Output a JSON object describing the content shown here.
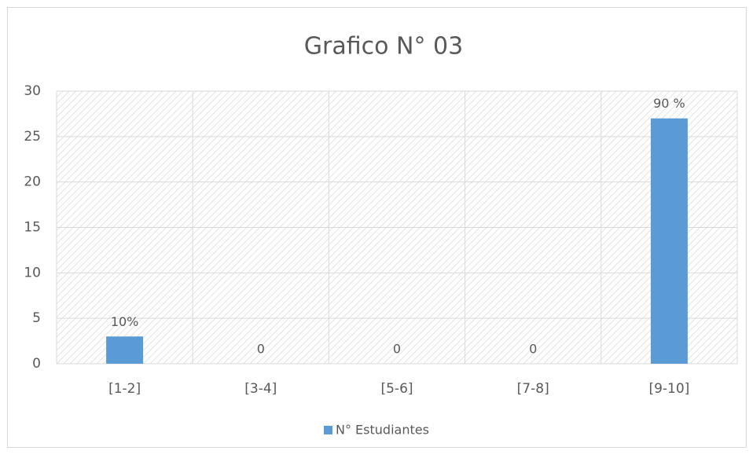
{
  "chart_data": {
    "type": "bar",
    "title": "Grafico N° 03",
    "categories": [
      "[1-2]",
      "[3-4]",
      "[5-6]",
      "[7-8]",
      "[9-10]"
    ],
    "series": [
      {
        "name": "N° Estudiantes",
        "color": "#5b9bd5",
        "values": [
          3,
          0,
          0,
          0,
          27
        ]
      }
    ],
    "annotations": [
      "10%",
      "0",
      "0",
      "0",
      "90 %"
    ],
    "ylim": [
      0,
      30
    ],
    "yticks": [
      0,
      5,
      10,
      15,
      20,
      25,
      30
    ],
    "grid": true,
    "legend": "bottom"
  }
}
